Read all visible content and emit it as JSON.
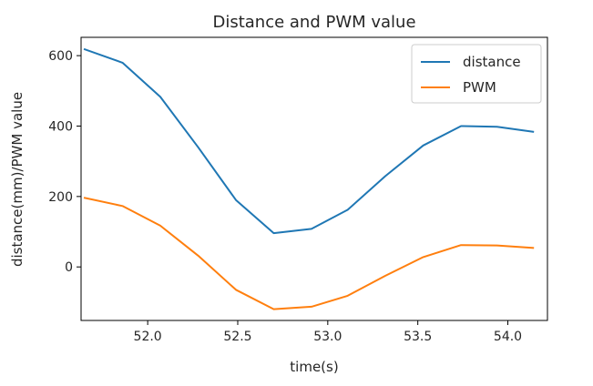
{
  "chart_data": {
    "type": "line",
    "title": "Distance and PWM value",
    "xlabel": "time(s)",
    "ylabel": "distance(mm)/PWM value",
    "xlim": [
      51.63,
      54.22
    ],
    "ylim": [
      -152,
      652
    ],
    "xticks": [
      52.0,
      52.5,
      53.0,
      53.5,
      54.0
    ],
    "xtick_labels": [
      "52.0",
      "52.5",
      "53.0",
      "53.5",
      "54.0"
    ],
    "yticks": [
      0,
      200,
      400,
      600
    ],
    "ytick_labels": [
      "0",
      "200",
      "400",
      "600"
    ],
    "grid": false,
    "legend_position": "top-right",
    "x": [
      51.65,
      51.86,
      52.07,
      52.28,
      52.49,
      52.7,
      52.91,
      53.11,
      53.32,
      53.53,
      53.74,
      53.94,
      54.14
    ],
    "series": [
      {
        "name": "distance",
        "color": "#1f77b4",
        "values": [
          618,
          580,
          483,
          340,
          190,
          96,
          108,
          162,
          258,
          345,
          400,
          398,
          384
        ]
      },
      {
        "name": "PWM",
        "color": "#ff7f0e",
        "values": [
          196,
          173,
          117,
          32,
          -65,
          -120,
          -113,
          -82,
          -25,
          28,
          62,
          61,
          54
        ]
      }
    ]
  }
}
